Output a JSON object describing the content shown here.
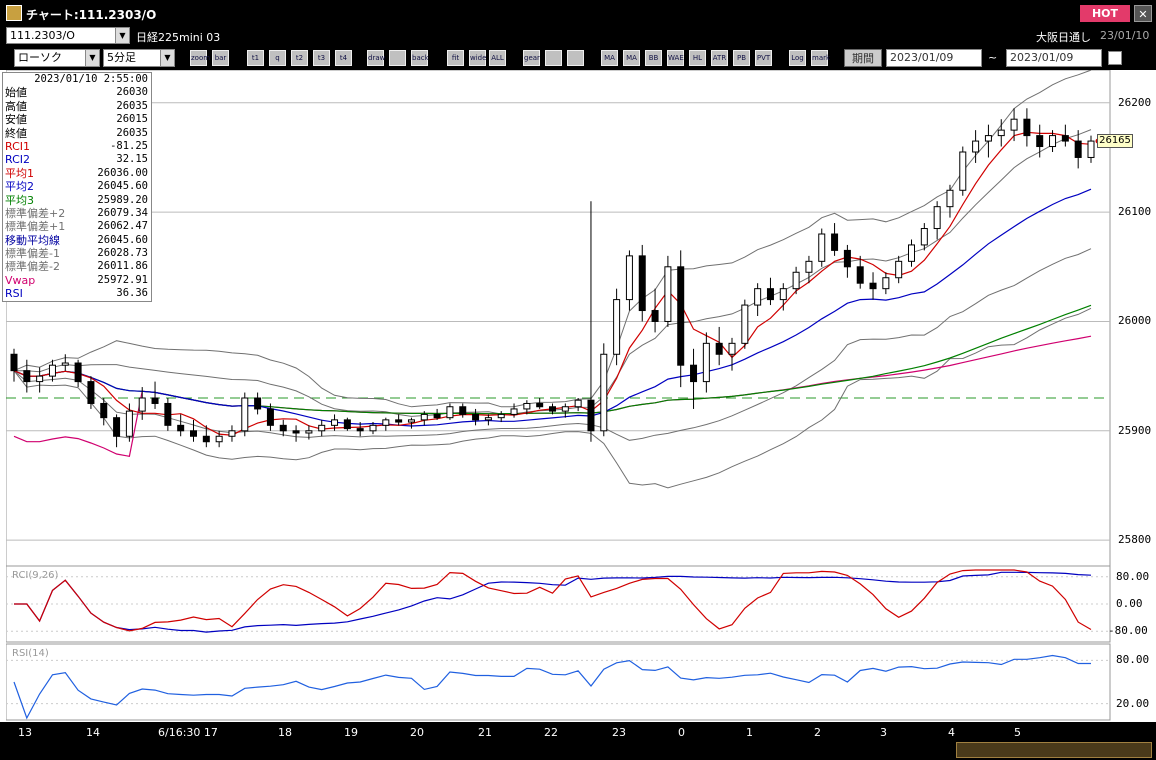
{
  "window": {
    "title": "チャート:111.2303/O",
    "hot_label": "HOT",
    "close": "✕"
  },
  "symbol_bar": {
    "symbol": "111.2303/O",
    "instrument": "日経225mini 03",
    "exchange": "大阪日通し",
    "date": "23/01/10"
  },
  "toolbar": {
    "chart_type": "ローソク",
    "period": "5分足",
    "period_label": "期間",
    "date_from": "2023/01/09",
    "date_to": "2023/01/09",
    "tilde": "~",
    "buttons": [
      "zoom",
      "bar",
      "t1",
      "q",
      "t2",
      "t3",
      "t4",
      "draw",
      "cursor",
      "back",
      "fit",
      "wide",
      "ALL",
      "gear",
      "wrench",
      "color",
      "MA",
      "MA",
      "BB",
      "WAE",
      "HL",
      "ATR",
      "PB",
      "PVT",
      "Log",
      "mark"
    ]
  },
  "info_panel": {
    "datetime": "2023/01/10  2:55:00",
    "rows": [
      {
        "label": "始値",
        "value": "26030",
        "color": "#000"
      },
      {
        "label": "高値",
        "value": "26035",
        "color": "#000"
      },
      {
        "label": "安値",
        "value": "26015",
        "color": "#000"
      },
      {
        "label": "終値",
        "value": "26035",
        "color": "#000"
      },
      {
        "label": "RCI1",
        "value": "-81.25",
        "color": "#d00000"
      },
      {
        "label": "RCI2",
        "value": "32.15",
        "color": "#0000c0"
      },
      {
        "label": "平均1",
        "value": "26036.00",
        "color": "#d00000"
      },
      {
        "label": "平均2",
        "value": "26045.60",
        "color": "#0000c0"
      },
      {
        "label": "平均3",
        "value": "25989.20",
        "color": "#008000"
      },
      {
        "label": "標準偏差+2",
        "value": "26079.34",
        "color": "#707070"
      },
      {
        "label": "標準偏差+1",
        "value": "26062.47",
        "color": "#707070"
      },
      {
        "label": "移動平均線",
        "value": "26045.60",
        "color": "#0000a0"
      },
      {
        "label": "標準偏差-1",
        "value": "26028.73",
        "color": "#707070"
      },
      {
        "label": "標準偏差-2",
        "value": "26011.86",
        "color": "#707070"
      },
      {
        "label": "Vwap",
        "value": "25972.91",
        "color": "#d0006f"
      },
      {
        "label": "RSI",
        "value": "36.36",
        "color": "#0000c0"
      }
    ]
  },
  "price_axis": {
    "labels": [
      "26200",
      "26100",
      "26000",
      "25900",
      "25800"
    ]
  },
  "last_price_tag": "26165",
  "rci_panel": {
    "label": "RCI(9,26)",
    "labels": [
      "80.00",
      "0.00",
      "-80.00"
    ]
  },
  "rsi_panel": {
    "label": "RSI(14)",
    "labels": [
      "80.00",
      "20.00"
    ]
  },
  "x_labels": [
    "13",
    "14",
    "6/16:30 17",
    "18",
    "19",
    "20",
    "21",
    "22",
    "23",
    "0",
    "1",
    "2",
    "3",
    "4",
    "5"
  ],
  "colors": {
    "ma1": "#d00000",
    "ma2": "#0000c0",
    "ma3": "#008000",
    "band": "#707070",
    "vwap": "#d0006f",
    "rci_fast": "#d00000",
    "rci_slow": "#0000c0",
    "rsi": "#2060e0"
  },
  "chart_data": {
    "type": "candlestick",
    "ylim": [
      25780,
      26230
    ],
    "note_series": "intraday 5-min Nikkei225 mini 03 futures",
    "candles": [
      [
        25970,
        25975,
        25945,
        25955
      ],
      [
        25955,
        25965,
        25935,
        25945
      ],
      [
        25945,
        25958,
        25935,
        25950
      ],
      [
        25950,
        25965,
        25945,
        25960
      ],
      [
        25960,
        25970,
        25955,
        25962
      ],
      [
        25962,
        25965,
        25940,
        25945
      ],
      [
        25945,
        25950,
        25920,
        25925
      ],
      [
        25925,
        25930,
        25905,
        25912
      ],
      [
        25912,
        25915,
        25885,
        25895
      ],
      [
        25895,
        25925,
        25890,
        25918
      ],
      [
        25918,
        25940,
        25910,
        25930
      ],
      [
        25930,
        25945,
        25920,
        25925
      ],
      [
        25925,
        25930,
        25900,
        25905
      ],
      [
        25905,
        25915,
        25895,
        25900
      ],
      [
        25900,
        25910,
        25890,
        25895
      ],
      [
        25895,
        25905,
        25885,
        25890
      ],
      [
        25890,
        25900,
        25885,
        25895
      ],
      [
        25895,
        25905,
        25890,
        25900
      ],
      [
        25900,
        25935,
        25895,
        25930
      ],
      [
        25930,
        25935,
        25915,
        25920
      ],
      [
        25920,
        25925,
        25900,
        25905
      ],
      [
        25905,
        25910,
        25895,
        25900
      ],
      [
        25900,
        25905,
        25890,
        25898
      ],
      [
        25898,
        25905,
        25892,
        25900
      ],
      [
        25900,
        25910,
        25895,
        25905
      ],
      [
        25905,
        25915,
        25900,
        25910
      ],
      [
        25910,
        25912,
        25900,
        25902
      ],
      [
        25902,
        25908,
        25895,
        25900
      ],
      [
        25900,
        25908,
        25897,
        25905
      ],
      [
        25905,
        25912,
        25900,
        25910
      ],
      [
        25910,
        25915,
        25905,
        25908
      ],
      [
        25908,
        25912,
        25902,
        25910
      ],
      [
        25910,
        25918,
        25905,
        25915
      ],
      [
        25915,
        25920,
        25910,
        25912
      ],
      [
        25912,
        25925,
        25910,
        25922
      ],
      [
        25922,
        25925,
        25912,
        25915
      ],
      [
        25915,
        25920,
        25905,
        25910
      ],
      [
        25910,
        25915,
        25905,
        25912
      ],
      [
        25912,
        25918,
        25908,
        25915
      ],
      [
        25915,
        25925,
        25912,
        25920
      ],
      [
        25920,
        25928,
        25915,
        25925
      ],
      [
        25925,
        25930,
        25920,
        25922
      ],
      [
        25922,
        25925,
        25915,
        25918
      ],
      [
        25918,
        25925,
        25912,
        25922
      ],
      [
        25922,
        25930,
        25918,
        25928
      ],
      [
        25928,
        26110,
        25890,
        25900
      ],
      [
        25900,
        25980,
        25895,
        25970
      ],
      [
        25970,
        26030,
        25960,
        26020
      ],
      [
        26020,
        26065,
        26010,
        26060
      ],
      [
        26060,
        26070,
        26000,
        26010
      ],
      [
        26010,
        26030,
        25990,
        26000
      ],
      [
        26000,
        26060,
        25995,
        26050
      ],
      [
        26050,
        26065,
        25940,
        25960
      ],
      [
        25960,
        25975,
        25920,
        25945
      ],
      [
        25945,
        25990,
        25935,
        25980
      ],
      [
        25980,
        25995,
        25960,
        25970
      ],
      [
        25970,
        25985,
        25955,
        25980
      ],
      [
        25980,
        26020,
        25975,
        26015
      ],
      [
        26015,
        26035,
        26005,
        26030
      ],
      [
        26030,
        26040,
        26015,
        26020
      ],
      [
        26020,
        26035,
        26010,
        26030
      ],
      [
        26030,
        26050,
        26025,
        26045
      ],
      [
        26045,
        26060,
        26035,
        26055
      ],
      [
        26055,
        26085,
        26050,
        26080
      ],
      [
        26080,
        26090,
        26060,
        26065
      ],
      [
        26065,
        26070,
        26040,
        26050
      ],
      [
        26050,
        26060,
        26030,
        26035
      ],
      [
        26035,
        26045,
        26020,
        26030
      ],
      [
        26030,
        26045,
        26025,
        26040
      ],
      [
        26040,
        26060,
        26035,
        26055
      ],
      [
        26055,
        26075,
        26050,
        26070
      ],
      [
        26070,
        26090,
        26065,
        26085
      ],
      [
        26085,
        26110,
        26075,
        26105
      ],
      [
        26105,
        26125,
        26095,
        26120
      ],
      [
        26120,
        26160,
        26115,
        26155
      ],
      [
        26155,
        26175,
        26145,
        26165
      ],
      [
        26165,
        26180,
        26150,
        26170
      ],
      [
        26170,
        26185,
        26160,
        26175
      ],
      [
        26175,
        26195,
        26165,
        26185
      ],
      [
        26185,
        26195,
        26160,
        26170
      ],
      [
        26170,
        26180,
        26150,
        26160
      ],
      [
        26160,
        26175,
        26155,
        26170
      ],
      [
        26170,
        26180,
        26160,
        26165
      ],
      [
        26165,
        26175,
        26140,
        26150
      ],
      [
        26150,
        26170,
        26145,
        26165
      ]
    ]
  }
}
